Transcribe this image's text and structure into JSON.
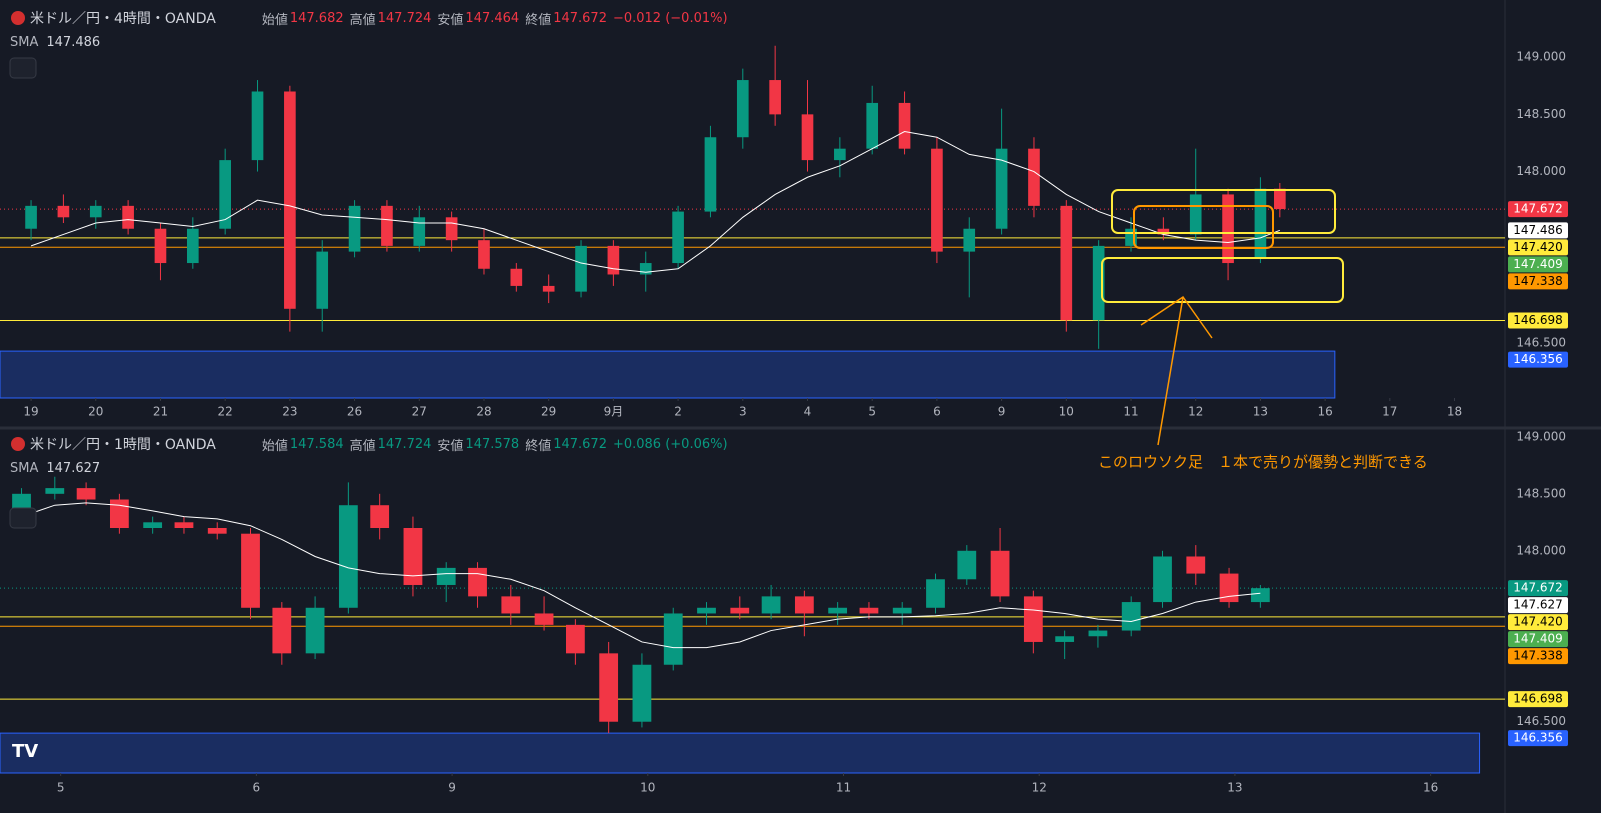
{
  "chart_data": [
    {
      "type": "candlestick",
      "header": {
        "symbol": "米ドル／円・4時間・OANDA",
        "ohlc": [
          {
            "label": "始値",
            "value": "147.682"
          },
          {
            "label": "高値",
            "value": "147.724"
          },
          {
            "label": "安値",
            "value": "147.464"
          },
          {
            "label": "終値",
            "value": "147.672"
          }
        ],
        "change": "−0.012 (−0.01%)"
      },
      "header_color": "#f23645",
      "sma": {
        "name": "SMA",
        "value": "147.486",
        "color": "#ffffff",
        "values": [
          147.35,
          147.45,
          147.55,
          147.58,
          147.55,
          147.52,
          147.58,
          147.75,
          147.7,
          147.62,
          147.6,
          147.58,
          147.55,
          147.55,
          147.5,
          147.4,
          147.3,
          147.2,
          147.15,
          147.12,
          147.15,
          147.35,
          147.6,
          147.8,
          147.95,
          148.05,
          148.2,
          148.35,
          148.3,
          148.15,
          148.1,
          148.0,
          147.8,
          147.65,
          147.55,
          147.45,
          147.4,
          147.38,
          147.42,
          147.486
        ]
      },
      "annotation": "このロウソク足　１本で売りが優勢と判断できる",
      "up_color": "#089981",
      "down_color": "#f23645",
      "x": [
        0,
        0.5,
        1,
        1.5,
        2,
        2.5,
        3,
        3.5,
        4,
        4.5,
        5,
        5.5,
        6,
        6.5,
        7,
        7.5,
        8,
        8.5,
        9,
        9.5,
        10,
        10.5,
        11,
        11.5,
        12,
        12.5,
        13,
        13.5,
        14,
        14.5,
        15,
        15.5,
        16,
        16.5,
        17,
        17.5,
        18,
        18.5,
        19,
        19.3
      ],
      "open": [
        147.5,
        147.7,
        147.6,
        147.7,
        147.5,
        147.2,
        147.5,
        148.1,
        148.7,
        146.8,
        147.3,
        147.7,
        147.35,
        147.6,
        147.4,
        147.15,
        147.0,
        146.95,
        147.35,
        147.1,
        147.2,
        147.65,
        148.3,
        148.8,
        148.5,
        148.1,
        148.2,
        148.6,
        148.2,
        147.3,
        147.5,
        148.2,
        147.7,
        146.7,
        147.35,
        147.5,
        147.45,
        147.8,
        147.25,
        147.85
      ],
      "high": [
        147.75,
        147.8,
        147.75,
        147.75,
        147.55,
        147.6,
        148.2,
        148.8,
        148.75,
        147.4,
        147.75,
        147.75,
        147.7,
        147.65,
        147.5,
        147.2,
        147.1,
        147.4,
        147.4,
        147.3,
        147.7,
        148.4,
        148.9,
        149.1,
        148.8,
        148.3,
        148.75,
        148.7,
        148.3,
        147.6,
        148.55,
        148.3,
        147.75,
        147.4,
        147.6,
        147.6,
        148.2,
        147.85,
        147.95,
        147.9
      ],
      "low": [
        147.4,
        147.55,
        147.5,
        147.45,
        147.05,
        147.15,
        147.45,
        148.0,
        146.6,
        146.6,
        147.25,
        147.3,
        147.3,
        147.3,
        147.1,
        146.95,
        146.85,
        146.9,
        147.0,
        146.95,
        147.15,
        147.6,
        148.2,
        148.4,
        148.0,
        147.95,
        148.15,
        148.15,
        147.2,
        146.9,
        147.45,
        147.6,
        146.6,
        146.45,
        147.3,
        147.4,
        147.4,
        147.05,
        147.2,
        147.6
      ],
      "close": [
        147.7,
        147.6,
        147.7,
        147.5,
        147.2,
        147.5,
        148.1,
        148.7,
        146.8,
        147.3,
        147.7,
        147.35,
        147.6,
        147.4,
        147.15,
        147.0,
        146.95,
        147.35,
        147.1,
        147.2,
        147.65,
        148.3,
        148.8,
        148.5,
        148.1,
        148.2,
        148.6,
        148.2,
        147.3,
        147.5,
        148.2,
        147.7,
        146.7,
        147.35,
        147.5,
        147.45,
        147.8,
        147.2,
        147.85,
        147.672
      ],
      "xlim": [
        -0.48,
        22.78
      ],
      "ylim": [
        146.02,
        149.5
      ],
      "xticks": [
        {
          "value": 0,
          "label": "19"
        },
        {
          "value": 1,
          "label": "20"
        },
        {
          "value": 2,
          "label": "21"
        },
        {
          "value": 3,
          "label": "22"
        },
        {
          "value": 4,
          "label": "23"
        },
        {
          "value": 5,
          "label": "26"
        },
        {
          "value": 6,
          "label": "27"
        },
        {
          "value": 7,
          "label": "28"
        },
        {
          "value": 8,
          "label": "29"
        },
        {
          "value": 9,
          "label": "9月"
        },
        {
          "value": 10,
          "label": "2"
        },
        {
          "value": 11,
          "label": "3"
        },
        {
          "value": 12,
          "label": "4"
        },
        {
          "value": 13,
          "label": "5"
        },
        {
          "value": 14,
          "label": "6"
        },
        {
          "value": 15,
          "label": "9"
        },
        {
          "value": 16,
          "label": "10"
        },
        {
          "value": 17,
          "label": "11"
        },
        {
          "value": 18,
          "label": "12"
        },
        {
          "value": 19,
          "label": "13"
        },
        {
          "value": 20,
          "label": "16"
        },
        {
          "value": 21,
          "label": "17"
        },
        {
          "value": 22,
          "label": "18"
        }
      ],
      "yticks": [
        {
          "value": 146.5,
          "label": "146.500"
        },
        {
          "value": 148,
          "label": "148.000"
        },
        {
          "value": 148.5,
          "label": "148.500"
        },
        {
          "value": 149,
          "label": "149.000"
        }
      ],
      "levels": [
        {
          "value": 147.672,
          "label": "147.672",
          "color": "#f23645",
          "text_color": "#ffffff",
          "line": "dotted"
        },
        {
          "value": 147.486,
          "label": "147.486",
          "color": "#ffffff",
          "text_color": "#000000",
          "line": "none"
        },
        {
          "value": 147.42,
          "label": "147.420",
          "color": "#ffeb3b",
          "text_color": "#000000",
          "line": "solid"
        },
        {
          "value": 147.409,
          "label": "147.409",
          "color": "#4caf50",
          "text_color": "#ffffff",
          "line": "none"
        },
        {
          "value": 147.338,
          "label": "147.338",
          "color": "#ff9800",
          "text_color": "#000000",
          "line": "solid"
        },
        {
          "value": 146.698,
          "label": "146.698",
          "color": "#ffeb3b",
          "text_color": "#000000",
          "line": "solid"
        },
        {
          "value": 146.356,
          "label": "146.356",
          "color": "#2962ff",
          "text_color": "#ffffff",
          "line": "none"
        }
      ],
      "zone": {
        "top": 146.43,
        "x_end": 20.15,
        "color": "#2962ff"
      }
    },
    {
      "type": "candlestick",
      "header": {
        "symbol": "米ドル／円・1時間・OANDA",
        "ohlc": [
          {
            "label": "始値",
            "value": "147.584"
          },
          {
            "label": "高値",
            "value": "147.724"
          },
          {
            "label": "安値",
            "value": "147.578"
          },
          {
            "label": "終値",
            "value": "147.672"
          }
        ],
        "change": "+0.086 (+0.06%)"
      },
      "header_color": "#089981",
      "sma": {
        "name": "SMA",
        "value": "147.627",
        "color": "#ffffff",
        "values": [
          148.3,
          148.4,
          148.42,
          148.4,
          148.35,
          148.3,
          148.28,
          148.22,
          148.1,
          147.95,
          147.85,
          147.8,
          147.78,
          147.8,
          147.8,
          147.75,
          147.65,
          147.5,
          147.35,
          147.2,
          147.15,
          147.15,
          147.2,
          147.3,
          147.35,
          147.4,
          147.42,
          147.42,
          147.43,
          147.45,
          147.5,
          147.48,
          147.45,
          147.4,
          147.38,
          147.45,
          147.55,
          147.6,
          147.627
        ]
      },
      "up_color": "#089981",
      "down_color": "#f23645",
      "x": [
        -0.2,
        -0.03,
        0.13,
        0.3,
        0.47,
        0.63,
        0.8,
        0.97,
        1.13,
        1.3,
        1.47,
        1.63,
        1.8,
        1.97,
        2.13,
        2.3,
        2.47,
        2.63,
        2.8,
        2.97,
        3.13,
        3.3,
        3.47,
        3.63,
        3.8,
        3.97,
        4.13,
        4.3,
        4.47,
        4.63,
        4.8,
        4.97,
        5.13,
        5.3,
        5.47,
        5.63,
        5.8,
        5.97,
        6.13
      ],
      "open": [
        148.3,
        148.5,
        148.55,
        148.45,
        148.2,
        148.25,
        148.2,
        148.15,
        147.5,
        147.1,
        147.5,
        148.4,
        148.2,
        147.7,
        147.85,
        147.6,
        147.45,
        147.35,
        147.1,
        146.5,
        147.0,
        147.45,
        147.5,
        147.45,
        147.6,
        147.45,
        147.5,
        147.45,
        147.5,
        147.75,
        148.0,
        147.6,
        147.2,
        147.25,
        147.3,
        147.55,
        147.95,
        147.8,
        147.55
      ],
      "high": [
        148.55,
        148.65,
        148.6,
        148.5,
        148.3,
        148.3,
        148.25,
        148.2,
        147.55,
        147.6,
        148.6,
        148.5,
        148.3,
        147.9,
        147.9,
        147.7,
        147.6,
        147.4,
        147.2,
        147.1,
        147.5,
        147.55,
        147.6,
        147.7,
        147.65,
        147.55,
        147.55,
        147.55,
        147.8,
        148.05,
        148.2,
        147.65,
        147.3,
        147.35,
        147.6,
        148.0,
        148.05,
        147.85,
        147.7
      ],
      "low": [
        148.25,
        148.45,
        148.4,
        148.15,
        148.15,
        148.15,
        148.1,
        147.4,
        147.0,
        147.05,
        147.45,
        148.1,
        147.6,
        147.55,
        147.5,
        147.35,
        147.3,
        147.0,
        146.4,
        146.45,
        146.95,
        147.35,
        147.4,
        147.4,
        147.25,
        147.35,
        147.4,
        147.35,
        147.45,
        147.7,
        147.55,
        147.1,
        147.05,
        147.15,
        147.25,
        147.5,
        147.7,
        147.5,
        147.5
      ],
      "close": [
        148.5,
        148.55,
        148.45,
        148.2,
        148.25,
        148.2,
        148.15,
        147.5,
        147.1,
        147.5,
        148.4,
        148.2,
        147.7,
        147.85,
        147.6,
        147.45,
        147.35,
        147.1,
        146.5,
        147.0,
        147.45,
        147.5,
        147.45,
        147.6,
        147.45,
        147.5,
        147.45,
        147.5,
        147.75,
        148.0,
        147.6,
        147.2,
        147.25,
        147.3,
        147.55,
        147.95,
        147.8,
        147.55,
        147.672
      ],
      "xlim": [
        -0.31,
        7.38
      ],
      "ylim": [
        146.05,
        149.06
      ],
      "xticks": [
        {
          "value": 0,
          "label": "5"
        },
        {
          "value": 1,
          "label": "6"
        },
        {
          "value": 2,
          "label": "9"
        },
        {
          "value": 3,
          "label": "10"
        },
        {
          "value": 4,
          "label": "11"
        },
        {
          "value": 5,
          "label": "12"
        },
        {
          "value": 6,
          "label": "13"
        },
        {
          "value": 7,
          "label": "16"
        }
      ],
      "yticks": [
        {
          "value": 146.5,
          "label": "146.500"
        },
        {
          "value": 148,
          "label": "148.000"
        },
        {
          "value": 148.5,
          "label": "148.500"
        },
        {
          "value": 149,
          "label": "149.000"
        }
      ],
      "levels": [
        {
          "value": 147.672,
          "label": "147.672",
          "color": "#089981",
          "text_color": "#ffffff",
          "line": "dotted"
        },
        {
          "value": 147.627,
          "label": "147.627",
          "color": "#ffffff",
          "text_color": "#000000",
          "line": "none"
        },
        {
          "value": 147.42,
          "label": "147.420",
          "color": "#ffeb3b",
          "text_color": "#000000",
          "line": "solid"
        },
        {
          "value": 147.409,
          "label": "147.409",
          "color": "#4caf50",
          "text_color": "#ffffff",
          "line": "none"
        },
        {
          "value": 147.338,
          "label": "147.338",
          "color": "#ff9800",
          "text_color": "#000000",
          "line": "solid"
        },
        {
          "value": 146.698,
          "label": "146.698",
          "color": "#ffeb3b",
          "text_color": "#000000",
          "line": "solid"
        },
        {
          "value": 146.356,
          "label": "146.356",
          "color": "#2962ff",
          "text_color": "#ffffff",
          "line": "none"
        }
      ],
      "zone": {
        "top": 146.4,
        "x_end": 7.25,
        "color": "#2962ff"
      }
    }
  ]
}
